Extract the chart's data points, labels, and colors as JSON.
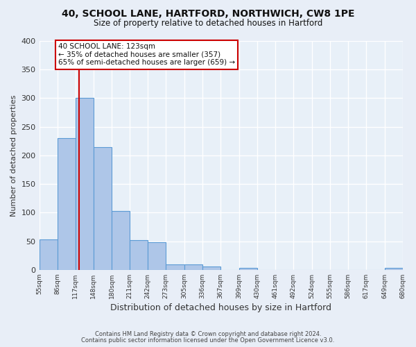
{
  "title1": "40, SCHOOL LANE, HARTFORD, NORTHWICH, CW8 1PE",
  "title2": "Size of property relative to detached houses in Hartford",
  "xlabel": "Distribution of detached houses by size in Hartford",
  "ylabel": "Number of detached properties",
  "bin_edges": [
    55,
    86,
    117,
    148,
    180,
    211,
    242,
    273,
    305,
    336,
    367,
    399,
    430,
    461,
    492,
    524,
    555,
    586,
    617,
    649,
    680
  ],
  "bar_heights": [
    53,
    230,
    300,
    215,
    103,
    52,
    48,
    10,
    10,
    6,
    0,
    4,
    0,
    0,
    0,
    0,
    0,
    0,
    0,
    4
  ],
  "bar_color": "#aec6e8",
  "bar_edgecolor": "#5b9bd5",
  "bg_color": "#e8eef7",
  "plot_bg_color": "#e8f0f8",
  "grid_color": "#c8d4e8",
  "vline_x": 123,
  "vline_color": "#cc0000",
  "annotation_box_title": "40 SCHOOL LANE: 123sqm",
  "annotation_line1": "← 35% of detached houses are smaller (357)",
  "annotation_line2": "65% of semi-detached houses are larger (659) →",
  "annotation_box_edgecolor": "#cc0000",
  "ylim": [
    0,
    400
  ],
  "yticks": [
    0,
    50,
    100,
    150,
    200,
    250,
    300,
    350,
    400
  ],
  "footer1": "Contains HM Land Registry data © Crown copyright and database right 2024.",
  "footer2": "Contains public sector information licensed under the Open Government Licence v3.0."
}
